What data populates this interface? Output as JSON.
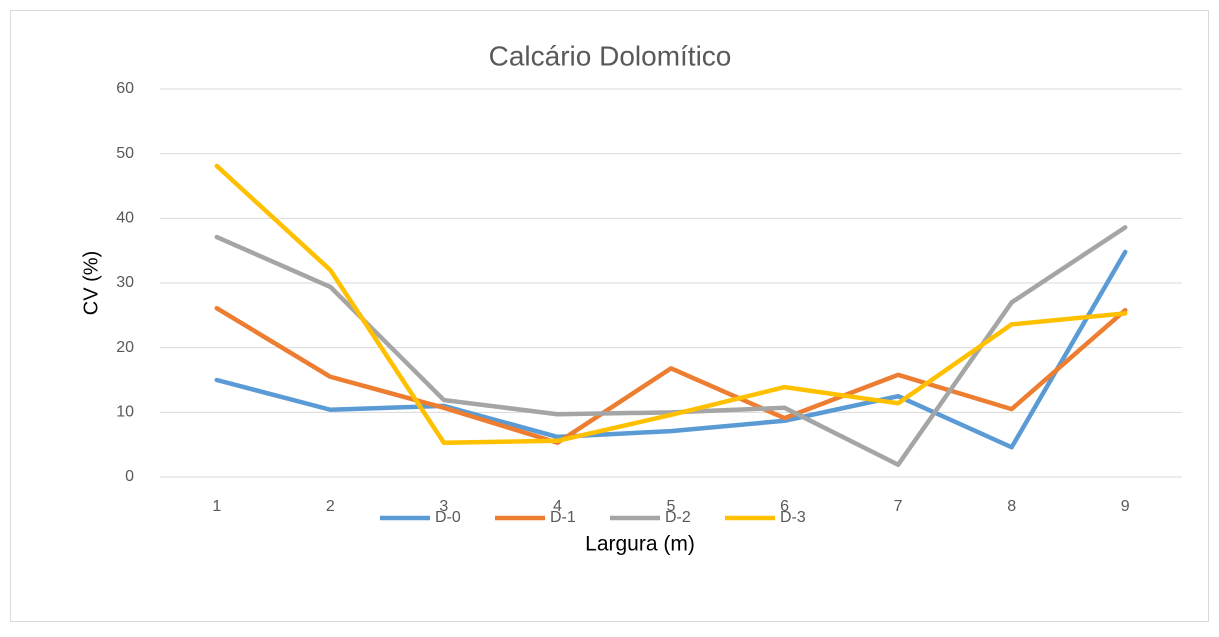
{
  "chart_data": {
    "type": "line",
    "title": "Calcário Dolomítico",
    "x_label": "Largura (m)",
    "y_label": "CV (%)",
    "categories": [
      "1",
      "2",
      "3",
      "4",
      "5",
      "6",
      "7",
      "8",
      "9"
    ],
    "series": [
      {
        "name": "D-0",
        "color": "#5b9bd5",
        "values": [
          15.0,
          10.4,
          11.0,
          6.2,
          7.1,
          8.7,
          12.5,
          4.6,
          34.8
        ]
      },
      {
        "name": "D-1",
        "color": "#ed7d31",
        "values": [
          26.1,
          15.5,
          10.7,
          5.3,
          16.8,
          9.1,
          15.8,
          10.5,
          25.8
        ]
      },
      {
        "name": "D-2",
        "color": "#a5a5a5",
        "values": [
          37.1,
          29.4,
          11.9,
          9.7,
          10.0,
          10.7,
          1.9,
          27.0,
          38.6
        ]
      },
      {
        "name": "D-3",
        "color": "#ffc000",
        "values": [
          48.1,
          32.0,
          5.3,
          5.6,
          9.6,
          13.9,
          11.4,
          23.6,
          25.3
        ]
      }
    ],
    "ylim": [
      0,
      60
    ],
    "yticks": [
      0,
      10,
      20,
      30,
      40,
      50,
      60
    ],
    "grid": true,
    "legend": "bottom"
  }
}
